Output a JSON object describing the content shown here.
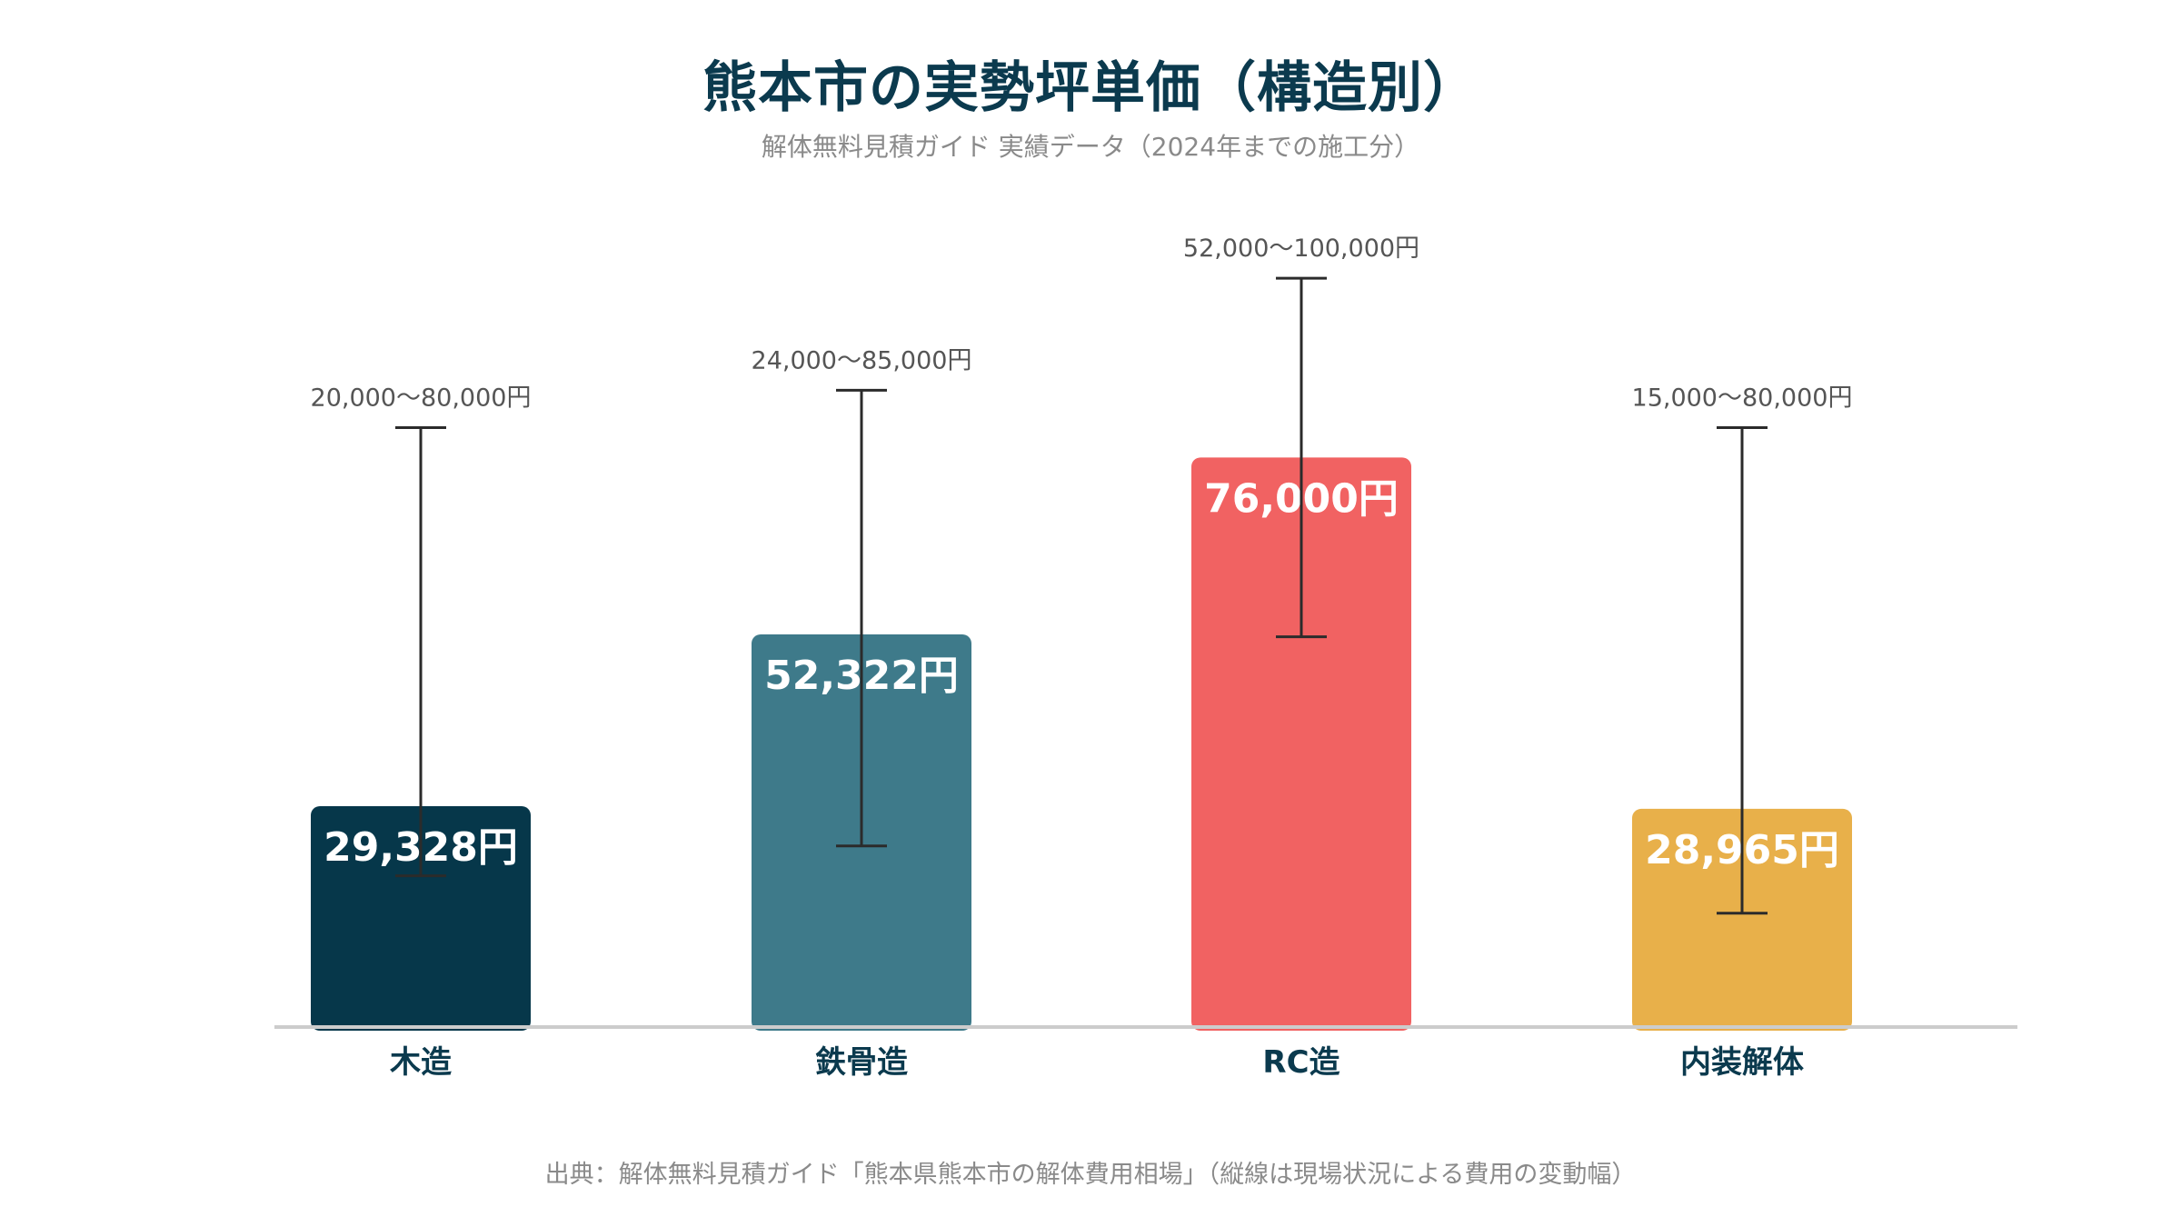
{
  "header": {
    "title": "熊本市の実勢坪単価（構造別）",
    "subtitle": "解体無料見積ガイド 実績データ（2024年までの施工分）"
  },
  "footer": {
    "source": "出典：解体無料見積ガイド「熊本県熊本市の解体費用相場」（縦線は現場状況による費用の変動幅）"
  },
  "chart_data": {
    "type": "bar",
    "title": "熊本市の実勢坪単価（構造別）",
    "subtitle": "解体無料見積ガイド 実績データ（2024年までの施工分）",
    "categories": [
      "木造",
      "鉄骨造",
      "RC造",
      "内装解体"
    ],
    "values": [
      29328,
      52322,
      76000,
      28965
    ],
    "value_labels": [
      "29,328円",
      "52,322円",
      "76,000円",
      "28,965円"
    ],
    "range_low": [
      20000,
      24000,
      52000,
      15000
    ],
    "range_high": [
      80000,
      85000,
      100000,
      80000
    ],
    "range_labels": [
      "20,000〜80,000円",
      "24,000〜85,000円",
      "52,000〜100,000円",
      "15,000〜80,000円"
    ],
    "colors": [
      "#06374a",
      "#3e7a8a",
      "#f16262",
      "#e8b04a"
    ],
    "label_color": "#ffffff",
    "errorbar_color": "#2b2b2b",
    "axis_color": "#cccccc",
    "category_color": "#0b3a4e",
    "range_label_color": "#555555",
    "ylim": [
      0,
      105000
    ],
    "grid": false,
    "legend": false,
    "xlabel": "",
    "ylabel": ""
  }
}
